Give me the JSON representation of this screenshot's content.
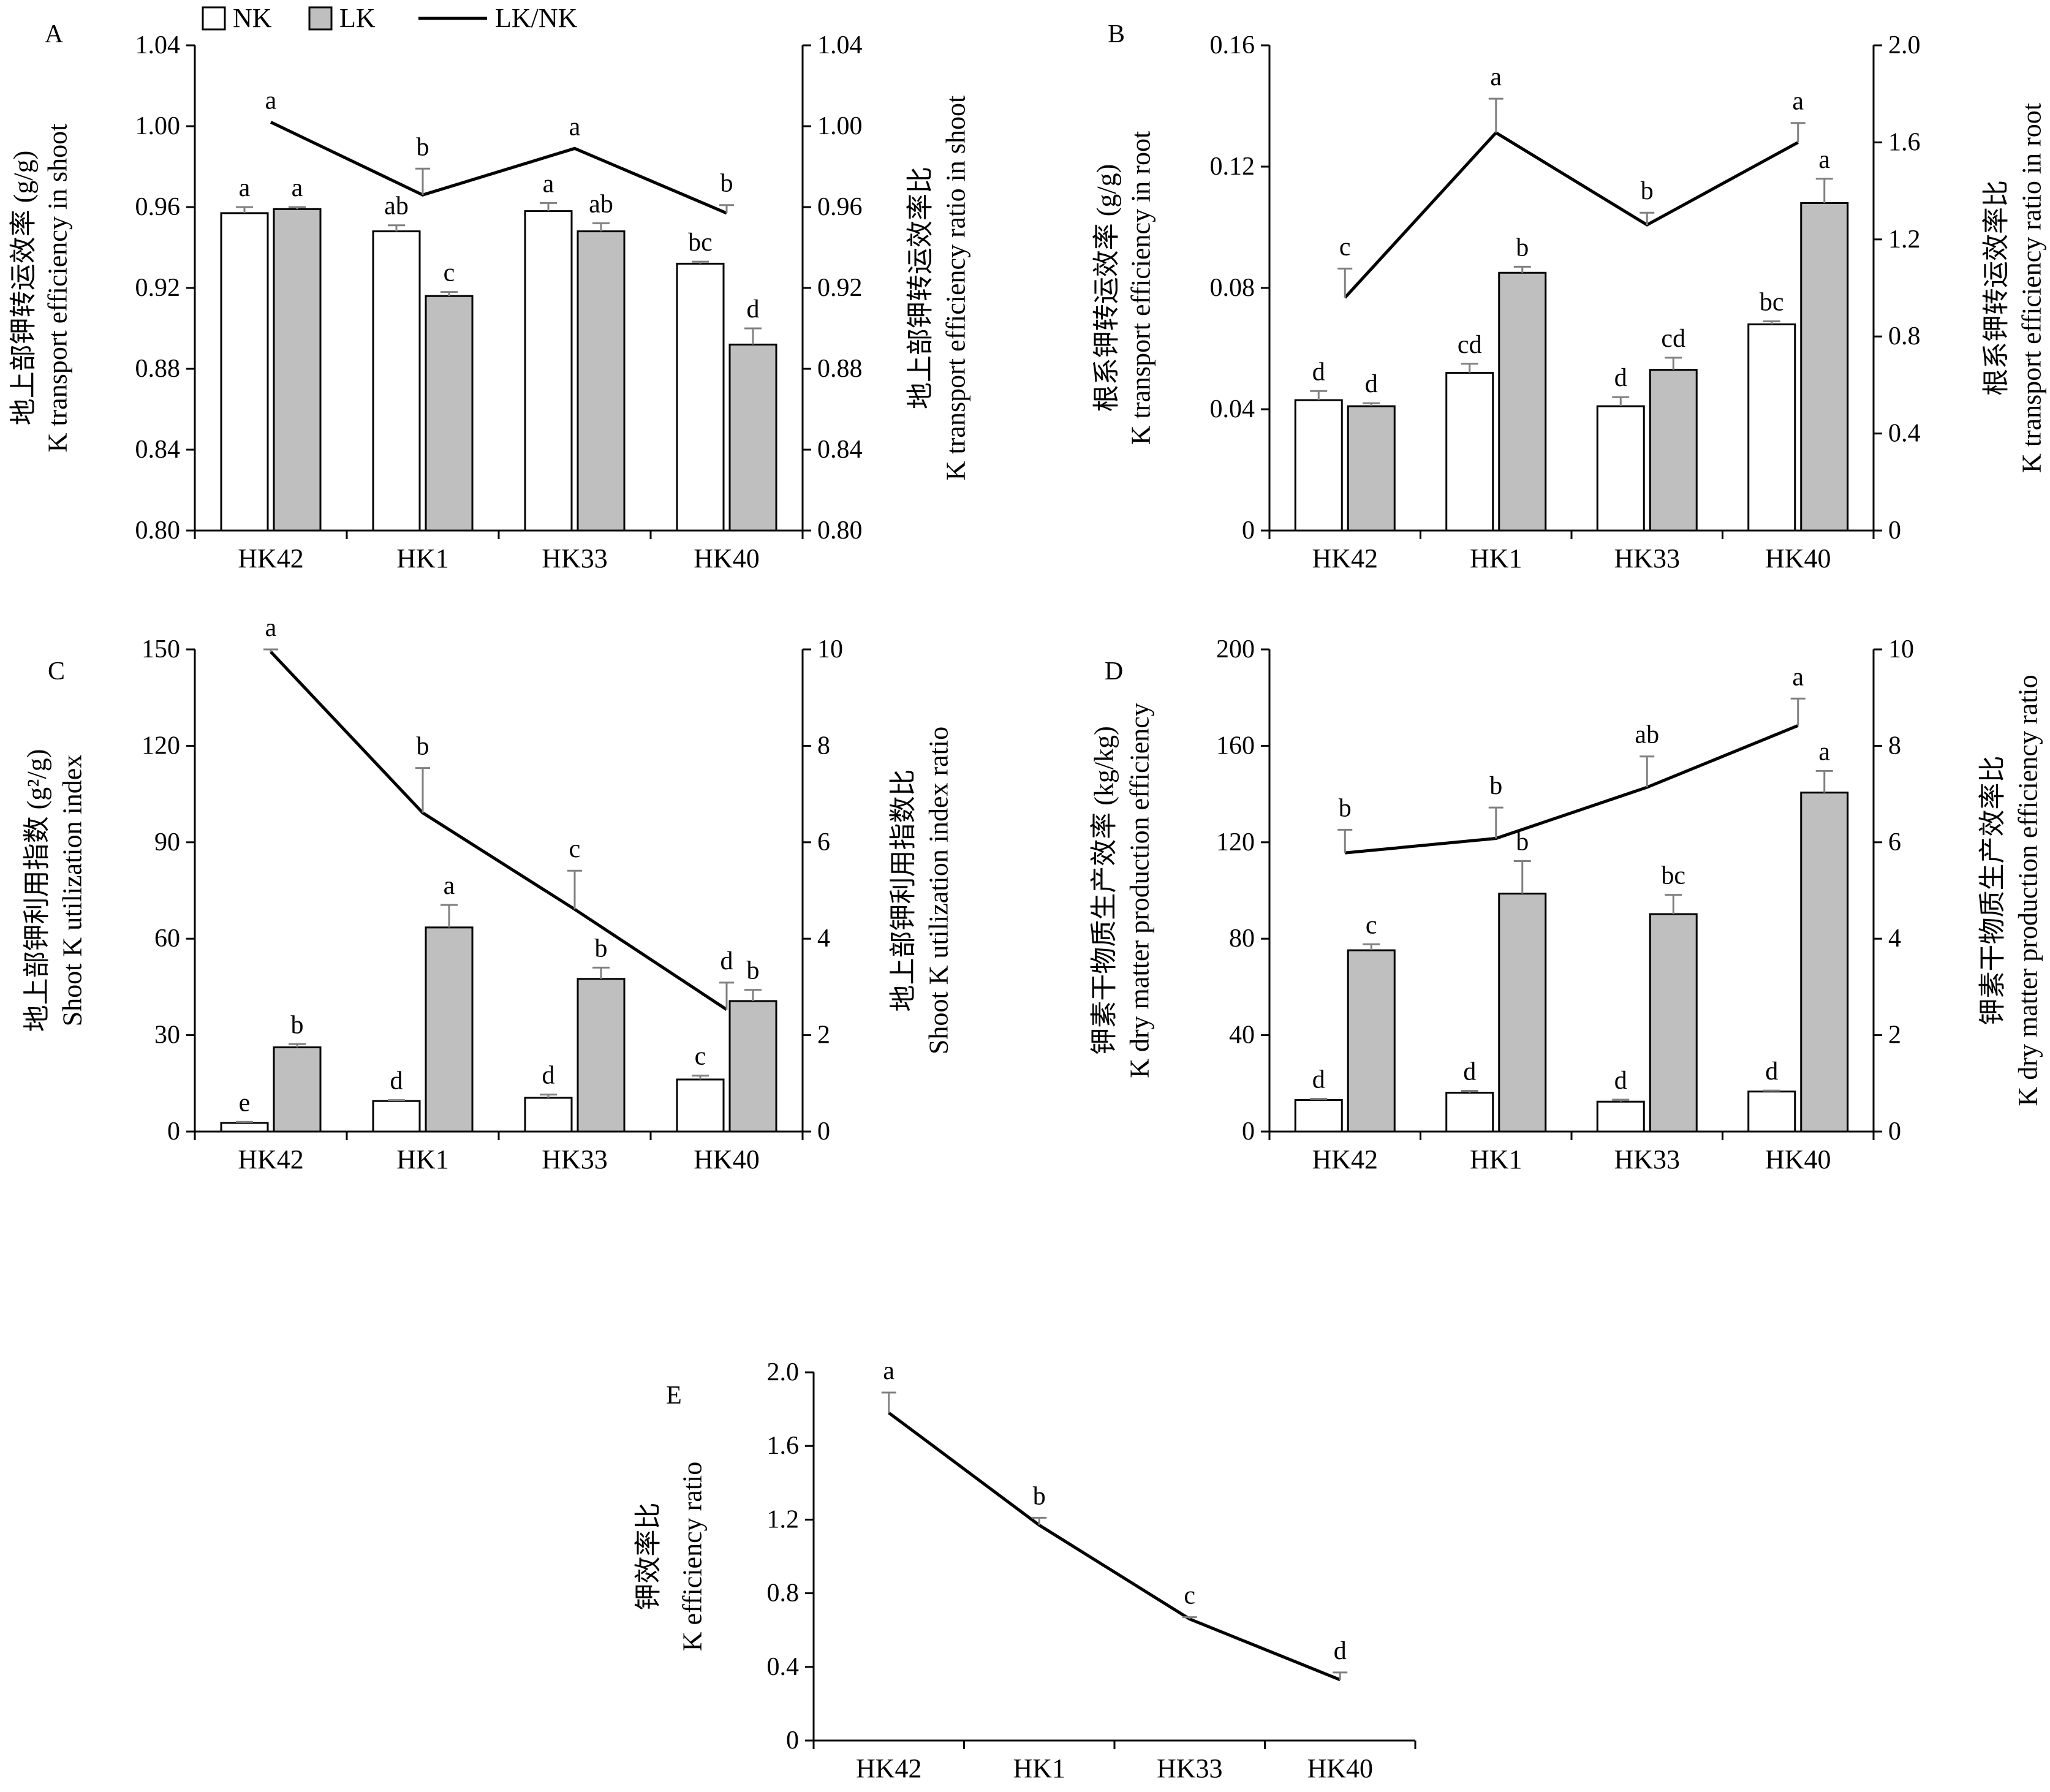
{
  "legend": {
    "nk": "NK",
    "lk": "LK",
    "ratio": "LK/NK"
  },
  "colors": {
    "nk_fill": "#ffffff",
    "lk_fill": "#bfbfbf",
    "line": "#000000",
    "err": "#808080"
  },
  "chart_data": [
    {
      "panel": "A",
      "type": "bar",
      "categories": [
        "HK42",
        "HK1",
        "HK33",
        "HK40"
      ],
      "ylabel_cn": "地上部钾转运效率 (g/g)",
      "ylabel_en": "K transport efficiency in shoot",
      "y2label_cn": "地上部钾转运效率比",
      "y2label_en": "K transport efficiency ratio in shoot",
      "ylim": [
        0.8,
        1.04
      ],
      "yticks": [
        "0.80",
        "0.84",
        "0.88",
        "0.92",
        "0.96",
        "1.00",
        "1.04"
      ],
      "y2lim": [
        0.8,
        1.04
      ],
      "y2ticks": [
        "0.80",
        "0.84",
        "0.88",
        "0.92",
        "0.96",
        "1.00",
        "1.04"
      ],
      "series": [
        {
          "name": "NK",
          "values": [
            0.957,
            0.948,
            0.958,
            0.932
          ],
          "err": [
            0.003,
            0.003,
            0.004,
            0.001
          ],
          "labels": [
            "a",
            "ab",
            "a",
            "bc"
          ]
        },
        {
          "name": "LK",
          "values": [
            0.959,
            0.916,
            0.948,
            0.892
          ],
          "err": [
            0.001,
            0.002,
            0.004,
            0.008
          ],
          "labels": [
            "a",
            "c",
            "ab",
            "d"
          ]
        }
      ],
      "ratio": {
        "name": "LK/NK",
        "values": [
          1.002,
          0.966,
          0.989,
          0.957
        ],
        "err": [
          0.0,
          0.013,
          0.0,
          0.004
        ],
        "labels": [
          "a",
          "b",
          "a",
          "b"
        ]
      }
    },
    {
      "panel": "B",
      "type": "bar",
      "categories": [
        "HK42",
        "HK1",
        "HK33",
        "HK40"
      ],
      "ylabel_cn": "根系钾转运效率 (g/g)",
      "ylabel_en": "K transport efficiency in root",
      "y2label_cn": "根系钾转运效率比",
      "y2label_en": "K transport efficiency ratio in root",
      "ylim": [
        0,
        0.16
      ],
      "yticks": [
        "0",
        "0.04",
        "0.08",
        "0.12",
        "0.16"
      ],
      "y2lim": [
        0,
        2.0
      ],
      "y2ticks": [
        "0",
        "0.4",
        "0.8",
        "1.2",
        "1.6",
        "2.0"
      ],
      "series": [
        {
          "name": "NK",
          "values": [
            0.043,
            0.052,
            0.041,
            0.068
          ],
          "err": [
            0.003,
            0.003,
            0.003,
            0.001
          ],
          "labels": [
            "d",
            "cd",
            "d",
            "bc"
          ]
        },
        {
          "name": "LK",
          "values": [
            0.041,
            0.085,
            0.053,
            0.108
          ],
          "err": [
            0.001,
            0.002,
            0.004,
            0.008
          ],
          "labels": [
            "d",
            "b",
            "cd",
            "a"
          ]
        }
      ],
      "ratio": {
        "name": "LK/NK",
        "values": [
          0.96,
          1.64,
          1.26,
          1.6
        ],
        "err": [
          0.12,
          0.14,
          0.05,
          0.08
        ],
        "labels": [
          "c",
          "a",
          "b",
          "a"
        ]
      }
    },
    {
      "panel": "C",
      "type": "bar",
      "categories": [
        "HK42",
        "HK1",
        "HK33",
        "HK40"
      ],
      "ylabel_cn": "地上部钾利用指数 (g²/g)",
      "ylabel_en": "Shoot K utilization index",
      "y2label_cn": "地上部钾利用指数比",
      "y2label_en": "Shoot K utilization index ratio",
      "ylim": [
        0,
        150
      ],
      "yticks": [
        "0",
        "30",
        "60",
        "90",
        "120",
        "150"
      ],
      "y2lim": [
        0,
        10
      ],
      "y2ticks": [
        "0",
        "2",
        "4",
        "6",
        "8",
        "10"
      ],
      "series": [
        {
          "name": "NK",
          "values": [
            2.7,
            9.5,
            10.5,
            16.2
          ],
          "err": [
            0.3,
            0.3,
            1.0,
            1.2
          ],
          "labels": [
            "e",
            "d",
            "d",
            "c"
          ]
        },
        {
          "name": "LK",
          "values": [
            26.2,
            63.5,
            47.5,
            40.6
          ],
          "err": [
            1.0,
            7.0,
            3.5,
            3.5
          ],
          "labels": [
            "b",
            "a",
            "b",
            "b"
          ]
        }
      ],
      "ratio": {
        "name": "LK/NK",
        "values": [
          9.95,
          6.61,
          4.61,
          2.53
        ],
        "err": [
          0.05,
          0.93,
          0.8,
          0.56
        ],
        "labels": [
          "a",
          "b",
          "c",
          "d"
        ]
      }
    },
    {
      "panel": "D",
      "type": "bar",
      "categories": [
        "HK42",
        "HK1",
        "HK33",
        "HK40"
      ],
      "ylabel_cn": "钾素干物质生产效率 (kg/kg)",
      "ylabel_en": "K dry matter production efficiency",
      "y2label_cn": "钾素干物质生产效率比",
      "y2label_en": "K dry matter production efficiency ratio",
      "ylim": [
        0,
        200
      ],
      "yticks": [
        "0",
        "40",
        "80",
        "120",
        "160",
        "200"
      ],
      "y2lim": [
        0,
        10
      ],
      "y2ticks": [
        "0",
        "2",
        "4",
        "6",
        "8",
        "10"
      ],
      "series": [
        {
          "name": "NK",
          "values": [
            13.1,
            16.1,
            12.4,
            16.6
          ],
          "err": [
            0.5,
            0.8,
            0.8,
            0.4
          ],
          "labels": [
            "d",
            "d",
            "d",
            "d"
          ]
        },
        {
          "name": "LK",
          "values": [
            75.2,
            98.7,
            90.2,
            140.6
          ],
          "err": [
            2.5,
            13.5,
            8.0,
            9.0
          ],
          "labels": [
            "c",
            "b",
            "bc",
            "a"
          ]
        }
      ],
      "ratio": {
        "name": "LK/NK",
        "values": [
          5.78,
          6.08,
          7.14,
          8.42
        ],
        "err": [
          0.48,
          0.64,
          0.64,
          0.56
        ],
        "labels": [
          "b",
          "b",
          "ab",
          "a"
        ]
      }
    },
    {
      "panel": "E",
      "type": "line",
      "categories": [
        "HK42",
        "HK1",
        "HK33",
        "HK40"
      ],
      "ylabel_cn": "钾效率比",
      "ylabel_en": "K efficiency ratio",
      "ylim": [
        0,
        2.0
      ],
      "yticks": [
        "0",
        "0.4",
        "0.8",
        "1.2",
        "1.6",
        "2.0"
      ],
      "ratio": {
        "name": "LK/NK",
        "values": [
          1.78,
          1.17,
          0.66,
          0.33
        ],
        "err": [
          0.11,
          0.04,
          0.01,
          0.04
        ],
        "labels": [
          "a",
          "b",
          "c",
          "d"
        ]
      }
    }
  ]
}
